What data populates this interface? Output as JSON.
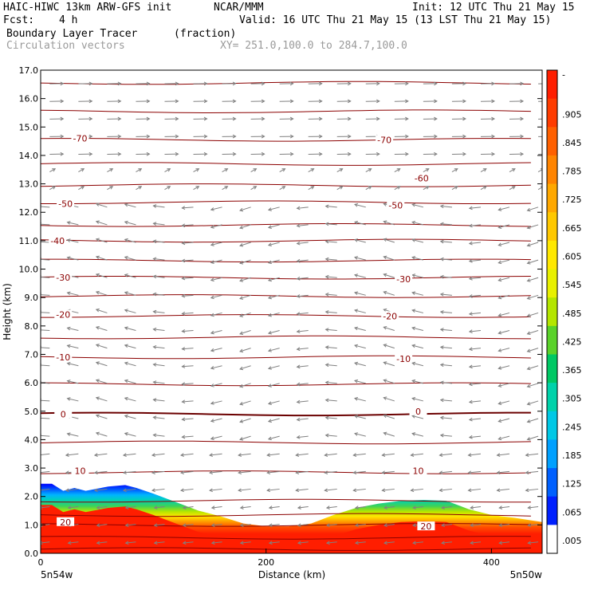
{
  "header": {
    "model": "HAIC-HIWC 13km ARW-GFS init",
    "org": "NCAR/MMM",
    "init": "Init: 12 UTC Thu 21 May 15",
    "fcst_label": "Fcst:",
    "fcst_value": "4 h",
    "valid": "Valid: 16 UTC Thu 21 May 15 (13 LST Thu 21 May 15)",
    "field": "Boundary Layer Tracer",
    "units": "(fraction)",
    "overlay": "Circulation vectors",
    "xy": "XY= 251.0,100.0 to 284.7,100.0"
  },
  "chart_data": {
    "type": "heatmap",
    "title": "Boundary Layer Tracer",
    "ylabel": "Height (km)",
    "xlabel": "Distance (km)",
    "xlim": [
      0,
      445
    ],
    "ylim": [
      0,
      17
    ],
    "y_ticks": [
      "0.0",
      "1.0",
      "2.0",
      "3.0",
      "4.0",
      "5.0",
      "6.0",
      "7.0",
      "8.0",
      "9.0",
      "10.0",
      "11.0",
      "12.0",
      "13.0",
      "14.0",
      "15.0",
      "16.0",
      "17.0"
    ],
    "x_ticks": [
      0,
      200,
      400
    ],
    "x_tick_labels": [
      "0",
      "200",
      "400"
    ],
    "x_endpoints": [
      "5n54w",
      "5n50w"
    ],
    "colorbar_labels": [
      "-",
      ".905",
      ".845",
      ".785",
      ".725",
      ".665",
      ".605",
      ".545",
      ".485",
      ".425",
      ".365",
      ".305",
      ".245",
      ".185",
      ".125",
      ".065",
      ".005"
    ],
    "colorbar_colors": [
      "#ff1e00",
      "#ff3c00",
      "#ff6000",
      "#ff8400",
      "#ffa800",
      "#ffc800",
      "#ffe800",
      "#e8f000",
      "#b4e600",
      "#5ad22a",
      "#00c864",
      "#00d2aa",
      "#00c8e6",
      "#00a0ff",
      "#0060ff",
      "#0020ff",
      "#ffffff"
    ],
    "tracer_top_km": [
      [
        0,
        2.45
      ],
      [
        10,
        2.45
      ],
      [
        20,
        2.2
      ],
      [
        30,
        2.3
      ],
      [
        40,
        2.2
      ],
      [
        60,
        2.35
      ],
      [
        75,
        2.4
      ],
      [
        85,
        2.3
      ],
      [
        100,
        2.1
      ],
      [
        120,
        1.8
      ],
      [
        140,
        1.5
      ],
      [
        160,
        1.3
      ],
      [
        180,
        1.05
      ],
      [
        200,
        0.95
      ],
      [
        220,
        0.95
      ],
      [
        240,
        1.05
      ],
      [
        260,
        1.35
      ],
      [
        280,
        1.6
      ],
      [
        300,
        1.75
      ],
      [
        320,
        1.85
      ],
      [
        340,
        1.88
      ],
      [
        360,
        1.85
      ],
      [
        380,
        1.55
      ],
      [
        400,
        1.35
      ],
      [
        420,
        1.25
      ],
      [
        445,
        1.1
      ]
    ],
    "contour_labels": [
      {
        "text": "-70",
        "x": 35,
        "y": 14.6
      },
      {
        "text": "-70",
        "x": 305,
        "y": 14.55
      },
      {
        "text": "-60",
        "x": 338,
        "y": 13.2
      },
      {
        "text": "-50",
        "x": 22,
        "y": 12.3
      },
      {
        "text": "-50",
        "x": 315,
        "y": 12.25
      },
      {
        "text": "-40",
        "x": 15,
        "y": 11.0
      },
      {
        "text": "-30",
        "x": 20,
        "y": 9.7
      },
      {
        "text": "-30",
        "x": 322,
        "y": 9.65
      },
      {
        "text": "-20",
        "x": 20,
        "y": 8.4
      },
      {
        "text": "-20",
        "x": 310,
        "y": 8.35
      },
      {
        "text": "-10",
        "x": 20,
        "y": 6.9
      },
      {
        "text": "-10",
        "x": 322,
        "y": 6.85
      },
      {
        "text": "0",
        "x": 20,
        "y": 4.9
      },
      {
        "text": "0",
        "x": 335,
        "y": 5.0
      },
      {
        "text": "10",
        "x": 35,
        "y": 2.9
      },
      {
        "text": "10",
        "x": 335,
        "y": 2.9
      },
      {
        "text": "20",
        "x": 22,
        "y": 1.1
      },
      {
        "text": "20",
        "x": 342,
        "y": 0.95
      }
    ],
    "isotherm_levels_km": [
      0.15,
      0.55,
      1.0,
      1.35,
      1.85,
      2.85,
      3.9,
      4.9,
      5.95,
      6.9,
      7.6,
      8.35,
      9.05,
      9.7,
      10.3,
      11.0,
      11.55,
      12.35,
      12.95,
      13.7,
      14.55,
      15.55,
      16.55
    ]
  }
}
